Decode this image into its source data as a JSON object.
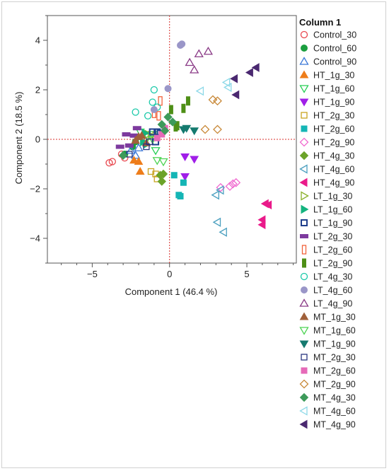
{
  "chart_data": {
    "type": "scatter",
    "title": "",
    "xlabel": "Component 1  (46.4 %)",
    "ylabel": "Component 2  (18.5 %)",
    "xlim": [
      -7.9,
      8.2
    ],
    "ylim": [
      -5.0,
      5.0
    ],
    "xticks": [
      -5,
      0,
      5
    ],
    "yticks": [
      -4,
      -2,
      0,
      2,
      4
    ],
    "grid": false,
    "reference_lines": {
      "x": 0,
      "y": 0,
      "color": "#d9302c",
      "style": "dotted"
    },
    "legend_title": "Column 1",
    "legend_position": "right",
    "series": [
      {
        "name": "Control_30",
        "marker": "circle-open",
        "color": "#e8474e",
        "points": [
          [
            -3.9,
            -0.95
          ],
          [
            -3.7,
            -0.9
          ],
          [
            -3.1,
            -0.6
          ],
          [
            -2.9,
            -0.75
          ]
        ]
      },
      {
        "name": "Control_60",
        "marker": "circle-filled",
        "color": "#1b9e3f",
        "points": [
          [
            -2.9,
            -0.6
          ],
          [
            -2.4,
            -0.3
          ],
          [
            -2.2,
            -0.1
          ]
        ]
      },
      {
        "name": "Control_90",
        "marker": "triangle-up-open",
        "color": "#3b78d8",
        "points": [
          [
            -2.5,
            -0.45
          ],
          [
            -2.2,
            -0.65
          ],
          [
            -2.0,
            -0.35
          ]
        ]
      },
      {
        "name": "HT_1g_30",
        "marker": "triangle-up-filled",
        "color": "#ee7d1a",
        "points": [
          [
            -2.3,
            -0.85
          ],
          [
            -2.0,
            -0.9
          ],
          [
            -1.9,
            -1.3
          ]
        ]
      },
      {
        "name": "HT_1g_60",
        "marker": "triangle-down-open",
        "color": "#27ce55",
        "points": [
          [
            -1.9,
            0.3
          ],
          [
            -1.4,
            0.1
          ],
          [
            -1.1,
            0.2
          ],
          [
            -0.9,
            -0.45
          ]
        ]
      },
      {
        "name": "HT_1g_90",
        "marker": "triangle-down-filled",
        "color": "#a01fe8",
        "points": [
          [
            1.0,
            -0.7
          ],
          [
            1.6,
            -0.8
          ],
          [
            1.0,
            -1.5
          ]
        ]
      },
      {
        "name": "HT_2g_30",
        "marker": "square-open",
        "color": "#c9a321",
        "points": [
          [
            -1.2,
            -1.3
          ],
          [
            -0.9,
            -1.4
          ],
          [
            -0.8,
            -1.6
          ]
        ]
      },
      {
        "name": "HT_2g_60",
        "marker": "square-filled",
        "color": "#14b5b5",
        "points": [
          [
            0.3,
            -1.45
          ],
          [
            0.9,
            -1.75
          ],
          [
            0.6,
            -2.25
          ],
          [
            0.7,
            -2.3
          ]
        ]
      },
      {
        "name": "HT_2g_90",
        "marker": "diamond-open",
        "color": "#f06bd0",
        "points": [
          [
            3.3,
            -1.95
          ],
          [
            3.9,
            -1.9
          ],
          [
            4.1,
            -1.8
          ],
          [
            4.3,
            -1.75
          ]
        ]
      },
      {
        "name": "HT_4g_30",
        "marker": "diamond-filled",
        "color": "#6ba329",
        "points": [
          [
            -0.4,
            -1.4
          ],
          [
            -0.6,
            -1.45
          ],
          [
            -0.5,
            -1.7
          ]
        ]
      },
      {
        "name": "HT_4g_60",
        "marker": "triangle-left-open",
        "color": "#4a9fbf",
        "points": [
          [
            3.0,
            -2.25
          ],
          [
            3.3,
            -2.05
          ],
          [
            3.1,
            -3.35
          ],
          [
            3.5,
            -3.75
          ]
        ]
      },
      {
        "name": "HT_4g_90",
        "marker": "triangle-left-filled",
        "color": "#ea1a8a",
        "points": [
          [
            6.2,
            -2.6
          ],
          [
            6.4,
            -2.65
          ],
          [
            6.0,
            -3.25
          ],
          [
            6.0,
            -3.45
          ]
        ]
      },
      {
        "name": "LT_1g_30",
        "marker": "triangle-right-open",
        "color": "#8ab02a",
        "points": [
          [
            -1.4,
            0.2
          ],
          [
            -1.2,
            0.15
          ],
          [
            -0.9,
            0.15
          ]
        ]
      },
      {
        "name": "LT_1g_60",
        "marker": "triangle-right-filled",
        "color": "#14b37e",
        "points": [
          [
            -1.7,
            -0.1
          ],
          [
            -1.5,
            -0.2
          ],
          [
            -1.6,
            0.25
          ]
        ]
      },
      {
        "name": "LT_1g_90",
        "marker": "square-open-thick",
        "color": "#1f3f8c",
        "points": [
          [
            -1.1,
            0.3
          ],
          [
            -0.8,
            0.3
          ],
          [
            -0.6,
            0.25
          ],
          [
            -0.9,
            -0.1
          ]
        ]
      },
      {
        "name": "LT_2g_30",
        "marker": "rect-wide",
        "color": "#7d3a9e",
        "points": [
          [
            -3.2,
            -0.3
          ],
          [
            -2.6,
            -0.25
          ],
          [
            -2.3,
            0.15
          ],
          [
            -2.1,
            0.45
          ],
          [
            -2.8,
            0.2
          ]
        ]
      },
      {
        "name": "LT_2g_60",
        "marker": "rect-tall-open",
        "color": "#f2623b",
        "points": [
          [
            -1.0,
            1.05
          ],
          [
            -0.6,
            1.55
          ],
          [
            -0.7,
            0.95
          ]
        ]
      },
      {
        "name": "LT_2g_90",
        "marker": "rect-tall-filled",
        "color": "#4e8f16",
        "points": [
          [
            0.1,
            1.2
          ],
          [
            0.9,
            1.25
          ],
          [
            1.2,
            1.55
          ],
          [
            0.5,
            0.55
          ],
          [
            0.4,
            0.5
          ]
        ]
      },
      {
        "name": "LT_4g_30",
        "marker": "circle-open",
        "color": "#1ac9a9",
        "points": [
          [
            -2.2,
            1.1
          ],
          [
            -1.4,
            0.95
          ],
          [
            -1.0,
            2.0
          ],
          [
            -1.1,
            1.5
          ],
          [
            -0.8,
            1.3
          ]
        ]
      },
      {
        "name": "LT_4g_60",
        "marker": "circle-filled",
        "color": "#9a96c8",
        "points": [
          [
            0.7,
            3.8
          ],
          [
            0.8,
            3.85
          ],
          [
            -0.1,
            2.05
          ],
          [
            -1.0,
            1.2
          ]
        ]
      },
      {
        "name": "LT_4g_90",
        "marker": "triangle-up-open",
        "color": "#8a3a86",
        "points": [
          [
            1.9,
            3.45
          ],
          [
            2.5,
            3.55
          ],
          [
            1.3,
            3.1
          ],
          [
            1.6,
            2.8
          ]
        ]
      },
      {
        "name": "MT_1g_30",
        "marker": "triangle-up-filled",
        "color": "#a0603a",
        "points": [
          [
            -2.2,
            -0.05
          ],
          [
            -2.0,
            0.1
          ],
          [
            -1.8,
            0.15
          ],
          [
            -1.5,
            -0.15
          ]
        ]
      },
      {
        "name": "MT_1g_60",
        "marker": "triangle-down-open",
        "color": "#4ed454",
        "points": [
          [
            -1.1,
            0.0
          ],
          [
            -0.8,
            -0.85
          ],
          [
            -0.4,
            -0.9
          ]
        ]
      },
      {
        "name": "MT_1g_90",
        "marker": "triangle-down-filled",
        "color": "#157a6f",
        "points": [
          [
            0.9,
            0.4
          ],
          [
            1.1,
            0.45
          ],
          [
            1.6,
            0.35
          ]
        ]
      },
      {
        "name": "MT_2g_30",
        "marker": "square-open",
        "color": "#2a3580",
        "points": [
          [
            -2.6,
            -0.6
          ],
          [
            -1.3,
            -0.1
          ],
          [
            -1.5,
            -0.3
          ]
        ]
      },
      {
        "name": "MT_2g_60",
        "marker": "square-filled",
        "color": "#e66ab8",
        "points": [
          [
            -0.8,
            0.05
          ],
          [
            -0.5,
            0.2
          ],
          [
            -0.3,
            0.45
          ]
        ]
      },
      {
        "name": "MT_2g_90",
        "marker": "diamond-open",
        "color": "#c98a3a",
        "points": [
          [
            2.3,
            0.4
          ],
          [
            3.1,
            0.4
          ],
          [
            2.8,
            1.6
          ],
          [
            3.1,
            1.55
          ]
        ]
      },
      {
        "name": "MT_4g_30",
        "marker": "diamond-filled",
        "color": "#3d9a5a",
        "points": [
          [
            -0.5,
            0.6
          ],
          [
            -0.1,
            0.9
          ],
          [
            0.2,
            0.7
          ],
          [
            -0.3,
            0.35
          ],
          [
            -3.0,
            -0.65
          ]
        ]
      },
      {
        "name": "MT_4g_60",
        "marker": "triangle-left-open",
        "color": "#8ed9e8",
        "points": [
          [
            2.0,
            1.95
          ],
          [
            3.7,
            2.3
          ],
          [
            3.8,
            2.1
          ]
        ]
      },
      {
        "name": "MT_4g_90",
        "marker": "triangle-left-filled",
        "color": "#4a2870",
        "points": [
          [
            4.2,
            2.45
          ],
          [
            4.3,
            1.8
          ],
          [
            5.2,
            2.7
          ],
          [
            5.6,
            2.9
          ]
        ]
      }
    ]
  }
}
